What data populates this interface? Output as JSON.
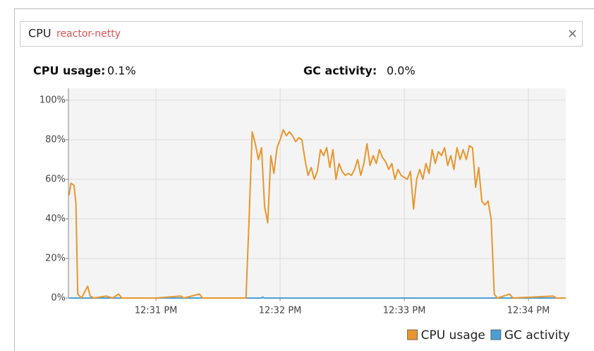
{
  "panel": {
    "title": "CPU",
    "subtitle": "reactor-netty"
  },
  "summary": [
    {
      "label": "CPU usage:",
      "value": "0.1%"
    },
    {
      "label": "GC activity:",
      "value": "0.0%"
    }
  ],
  "chart_data": {
    "type": "line",
    "xlim": [
      750.295,
      754.301
    ],
    "xticks": [
      {
        "value": 751,
        "label": "12:31 PM"
      },
      {
        "value": 752,
        "label": "12:32 PM"
      },
      {
        "value": 753,
        "label": "12:33 PM"
      },
      {
        "value": 754,
        "label": "12:34 PM"
      }
    ],
    "ylim": [
      0,
      106
    ],
    "yticks": [
      {
        "value": 0,
        "label": "0%"
      },
      {
        "value": 20,
        "label": "20%"
      },
      {
        "value": 40,
        "label": "40%"
      },
      {
        "value": 60,
        "label": "60%"
      },
      {
        "value": 80,
        "label": "80%"
      },
      {
        "value": 100,
        "label": "100%"
      }
    ],
    "grid": true,
    "legend": "bottom-right",
    "series": [
      {
        "name": "CPU usage",
        "color": "#e8962e",
        "x": [
          750.3,
          750.315,
          750.34,
          750.355,
          750.37,
          750.4,
          750.45,
          750.47,
          750.5,
          750.6,
          750.65,
          750.7,
          750.725,
          751.0,
          751.2,
          751.225,
          751.35,
          751.375,
          751.725,
          751.75,
          751.775,
          751.8,
          751.825,
          751.85,
          751.875,
          751.9,
          751.925,
          751.95,
          751.975,
          752.0,
          752.025,
          752.05,
          752.075,
          752.1,
          752.125,
          752.15,
          752.175,
          752.2,
          752.225,
          752.25,
          752.275,
          752.3,
          752.325,
          752.35,
          752.375,
          752.4,
          752.425,
          752.45,
          752.475,
          752.5,
          752.525,
          752.55,
          752.575,
          752.6,
          752.625,
          752.65,
          752.675,
          752.7,
          752.725,
          752.75,
          752.775,
          752.8,
          752.825,
          752.85,
          752.875,
          752.9,
          752.925,
          752.95,
          752.975,
          753.0,
          753.025,
          753.05,
          753.075,
          753.1,
          753.125,
          753.15,
          753.175,
          753.2,
          753.225,
          753.25,
          753.275,
          753.3,
          753.325,
          753.35,
          753.375,
          753.4,
          753.425,
          753.45,
          753.475,
          753.5,
          753.525,
          753.55,
          753.575,
          753.6,
          753.625,
          753.65,
          753.675,
          753.7,
          753.725,
          753.75,
          753.85,
          753.875,
          754.2,
          754.225,
          754.3
        ],
        "values": [
          52,
          58,
          57,
          48,
          2,
          0,
          6,
          1,
          0,
          1,
          0,
          2,
          0,
          0,
          1,
          0,
          2,
          0,
          0,
          40,
          84,
          78,
          70,
          76,
          46,
          38,
          72,
          63,
          76,
          80,
          85,
          82,
          84,
          82,
          79,
          81,
          80,
          70,
          62,
          66,
          60,
          64,
          75,
          72,
          76,
          66,
          75,
          60,
          68,
          64,
          62,
          63,
          62,
          65,
          70,
          62,
          68,
          78,
          67,
          72,
          68,
          75,
          71,
          69,
          65,
          68,
          60,
          65,
          62,
          61,
          60,
          64,
          45,
          60,
          65,
          60,
          68,
          63,
          75,
          68,
          74,
          72,
          76,
          67,
          72,
          65,
          76,
          70,
          75,
          70,
          77,
          76,
          56,
          66,
          49,
          47,
          49,
          40,
          2,
          0,
          2,
          0,
          1,
          0,
          0
        ]
      },
      {
        "name": "GC activity",
        "color": "#4a9fd5",
        "x": [
          750.3,
          751.85,
          751.86,
          751.87,
          754.3
        ],
        "values": [
          0,
          0,
          0.5,
          0,
          0
        ]
      }
    ]
  }
}
